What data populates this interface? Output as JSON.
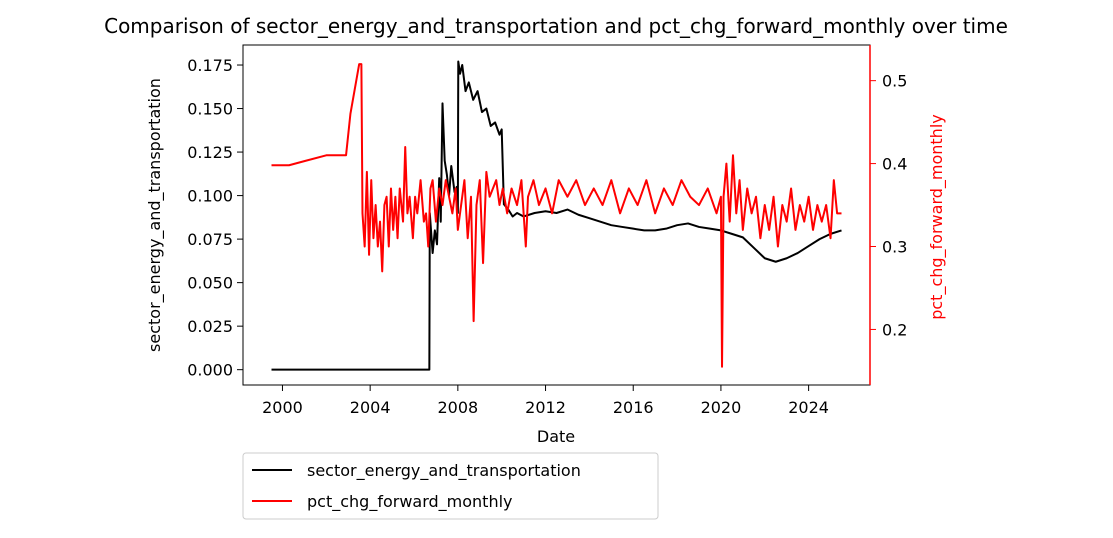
{
  "chart_data": {
    "type": "line",
    "title": "Comparison of sector_energy_and_transportation and pct_chg_forward_monthly over time",
    "xlabel": "Date",
    "ylabel_left": "sector_energy_and_transportation",
    "ylabel_right": "pct_chg_forward_monthly",
    "x_ticks": [
      "2000",
      "2004",
      "2008",
      "2012",
      "2016",
      "2020",
      "2024"
    ],
    "xlim": [
      1998.2,
      2026.8
    ],
    "y_left_ticks": [
      "0.000",
      "0.025",
      "0.050",
      "0.075",
      "0.100",
      "0.125",
      "0.150",
      "0.175"
    ],
    "ylim_left": [
      -0.0088,
      0.1865
    ],
    "y_right_ticks": [
      "0.2",
      "0.3",
      "0.4",
      "0.5"
    ],
    "ylim_right": [
      0.133,
      0.543
    ],
    "grid": false,
    "legend_placement": "below-left",
    "legend": [
      "sector_energy_and_transportation",
      "pct_chg_forward_monthly"
    ],
    "colors": {
      "left_series": "#000000",
      "right_series": "#ff0000",
      "right_axis": "#ff0000"
    },
    "series": [
      {
        "name": "sector_energy_and_transportation",
        "axis": "left",
        "points": [
          [
            1999.5,
            0.0
          ],
          [
            2006.7,
            0.0
          ],
          [
            2006.72,
            0.09
          ],
          [
            2006.85,
            0.067
          ],
          [
            2006.95,
            0.08
          ],
          [
            2007.05,
            0.072
          ],
          [
            2007.15,
            0.11
          ],
          [
            2007.22,
            0.085
          ],
          [
            2007.3,
            0.153
          ],
          [
            2007.4,
            0.12
          ],
          [
            2007.5,
            0.112
          ],
          [
            2007.6,
            0.1
          ],
          [
            2007.7,
            0.117
          ],
          [
            2007.85,
            0.102
          ],
          [
            2007.95,
            0.105
          ],
          [
            2008.0,
            0.09
          ],
          [
            2008.02,
            0.177
          ],
          [
            2008.1,
            0.17
          ],
          [
            2008.2,
            0.175
          ],
          [
            2008.35,
            0.16
          ],
          [
            2008.5,
            0.165
          ],
          [
            2008.7,
            0.155
          ],
          [
            2008.9,
            0.16
          ],
          [
            2009.1,
            0.148
          ],
          [
            2009.3,
            0.15
          ],
          [
            2009.5,
            0.14
          ],
          [
            2009.7,
            0.142
          ],
          [
            2009.9,
            0.135
          ],
          [
            2010.0,
            0.138
          ],
          [
            2010.1,
            0.095
          ],
          [
            2010.3,
            0.092
          ],
          [
            2010.5,
            0.088
          ],
          [
            2010.7,
            0.09
          ],
          [
            2011.0,
            0.088
          ],
          [
            2011.5,
            0.09
          ],
          [
            2012.0,
            0.091
          ],
          [
            2012.5,
            0.09
          ],
          [
            2013.0,
            0.092
          ],
          [
            2013.5,
            0.089
          ],
          [
            2014.0,
            0.087
          ],
          [
            2014.5,
            0.085
          ],
          [
            2015.0,
            0.083
          ],
          [
            2015.5,
            0.082
          ],
          [
            2016.0,
            0.081
          ],
          [
            2016.5,
            0.08
          ],
          [
            2017.0,
            0.08
          ],
          [
            2017.5,
            0.081
          ],
          [
            2018.0,
            0.083
          ],
          [
            2018.5,
            0.084
          ],
          [
            2019.0,
            0.082
          ],
          [
            2019.5,
            0.081
          ],
          [
            2020.0,
            0.08
          ],
          [
            2020.5,
            0.078
          ],
          [
            2021.0,
            0.076
          ],
          [
            2021.5,
            0.07
          ],
          [
            2022.0,
            0.064
          ],
          [
            2022.5,
            0.062
          ],
          [
            2023.0,
            0.064
          ],
          [
            2023.5,
            0.067
          ],
          [
            2024.0,
            0.071
          ],
          [
            2024.5,
            0.075
          ],
          [
            2025.0,
            0.078
          ],
          [
            2025.5,
            0.08
          ]
        ]
      },
      {
        "name": "pct_chg_forward_monthly",
        "axis": "right",
        "points": [
          [
            1999.5,
            0.398
          ],
          [
            2000.3,
            0.398
          ],
          [
            2001.0,
            0.403
          ],
          [
            2002.0,
            0.41
          ],
          [
            2002.9,
            0.41
          ],
          [
            2003.1,
            0.46
          ],
          [
            2003.5,
            0.52
          ],
          [
            2003.6,
            0.52
          ],
          [
            2003.65,
            0.34
          ],
          [
            2003.75,
            0.3
          ],
          [
            2003.85,
            0.39
          ],
          [
            2003.95,
            0.29
          ],
          [
            2004.05,
            0.38
          ],
          [
            2004.15,
            0.31
          ],
          [
            2004.25,
            0.35
          ],
          [
            2004.35,
            0.3
          ],
          [
            2004.45,
            0.33
          ],
          [
            2004.55,
            0.27
          ],
          [
            2004.65,
            0.35
          ],
          [
            2004.75,
            0.36
          ],
          [
            2004.85,
            0.3
          ],
          [
            2004.95,
            0.37
          ],
          [
            2005.05,
            0.32
          ],
          [
            2005.15,
            0.36
          ],
          [
            2005.25,
            0.31
          ],
          [
            2005.35,
            0.37
          ],
          [
            2005.5,
            0.33
          ],
          [
            2005.6,
            0.42
          ],
          [
            2005.7,
            0.34
          ],
          [
            2005.8,
            0.36
          ],
          [
            2005.95,
            0.31
          ],
          [
            2006.05,
            0.36
          ],
          [
            2006.15,
            0.34
          ],
          [
            2006.3,
            0.38
          ],
          [
            2006.45,
            0.33
          ],
          [
            2006.55,
            0.34
          ],
          [
            2006.65,
            0.3
          ],
          [
            2006.75,
            0.37
          ],
          [
            2006.85,
            0.38
          ],
          [
            2007.0,
            0.33
          ],
          [
            2007.15,
            0.37
          ],
          [
            2007.3,
            0.35
          ],
          [
            2007.45,
            0.38
          ],
          [
            2007.6,
            0.36
          ],
          [
            2007.75,
            0.34
          ],
          [
            2007.9,
            0.37
          ],
          [
            2008.0,
            0.32
          ],
          [
            2008.15,
            0.35
          ],
          [
            2008.3,
            0.38
          ],
          [
            2008.45,
            0.31
          ],
          [
            2008.6,
            0.36
          ],
          [
            2008.72,
            0.21
          ],
          [
            2008.85,
            0.35
          ],
          [
            2009.0,
            0.38
          ],
          [
            2009.15,
            0.28
          ],
          [
            2009.3,
            0.39
          ],
          [
            2009.45,
            0.36
          ],
          [
            2009.6,
            0.37
          ],
          [
            2009.75,
            0.38
          ],
          [
            2009.9,
            0.35
          ],
          [
            2010.05,
            0.37
          ],
          [
            2010.25,
            0.34
          ],
          [
            2010.45,
            0.37
          ],
          [
            2010.7,
            0.35
          ],
          [
            2010.9,
            0.38
          ],
          [
            2011.1,
            0.3
          ],
          [
            2011.2,
            0.36
          ],
          [
            2011.45,
            0.38
          ],
          [
            2011.7,
            0.35
          ],
          [
            2012.0,
            0.37
          ],
          [
            2012.3,
            0.34
          ],
          [
            2012.6,
            0.38
          ],
          [
            2013.0,
            0.36
          ],
          [
            2013.4,
            0.38
          ],
          [
            2013.8,
            0.35
          ],
          [
            2014.2,
            0.37
          ],
          [
            2014.6,
            0.35
          ],
          [
            2015.0,
            0.38
          ],
          [
            2015.4,
            0.34
          ],
          [
            2015.8,
            0.37
          ],
          [
            2016.2,
            0.35
          ],
          [
            2016.6,
            0.38
          ],
          [
            2017.0,
            0.34
          ],
          [
            2017.4,
            0.37
          ],
          [
            2017.8,
            0.35
          ],
          [
            2018.2,
            0.38
          ],
          [
            2018.6,
            0.36
          ],
          [
            2019.0,
            0.35
          ],
          [
            2019.4,
            0.37
          ],
          [
            2019.8,
            0.34
          ],
          [
            2020.0,
            0.36
          ],
          [
            2020.05,
            0.155
          ],
          [
            2020.12,
            0.36
          ],
          [
            2020.25,
            0.4
          ],
          [
            2020.4,
            0.33
          ],
          [
            2020.55,
            0.41
          ],
          [
            2020.7,
            0.34
          ],
          [
            2020.85,
            0.38
          ],
          [
            2021.0,
            0.32
          ],
          [
            2021.2,
            0.37
          ],
          [
            2021.4,
            0.34
          ],
          [
            2021.6,
            0.36
          ],
          [
            2021.8,
            0.31
          ],
          [
            2022.0,
            0.35
          ],
          [
            2022.2,
            0.32
          ],
          [
            2022.4,
            0.36
          ],
          [
            2022.6,
            0.3
          ],
          [
            2022.8,
            0.35
          ],
          [
            2023.0,
            0.33
          ],
          [
            2023.2,
            0.37
          ],
          [
            2023.4,
            0.32
          ],
          [
            2023.6,
            0.35
          ],
          [
            2023.8,
            0.33
          ],
          [
            2024.0,
            0.36
          ],
          [
            2024.2,
            0.32
          ],
          [
            2024.4,
            0.35
          ],
          [
            2024.6,
            0.33
          ],
          [
            2024.8,
            0.35
          ],
          [
            2025.0,
            0.31
          ],
          [
            2025.15,
            0.38
          ],
          [
            2025.3,
            0.34
          ],
          [
            2025.5,
            0.34
          ]
        ]
      }
    ]
  }
}
